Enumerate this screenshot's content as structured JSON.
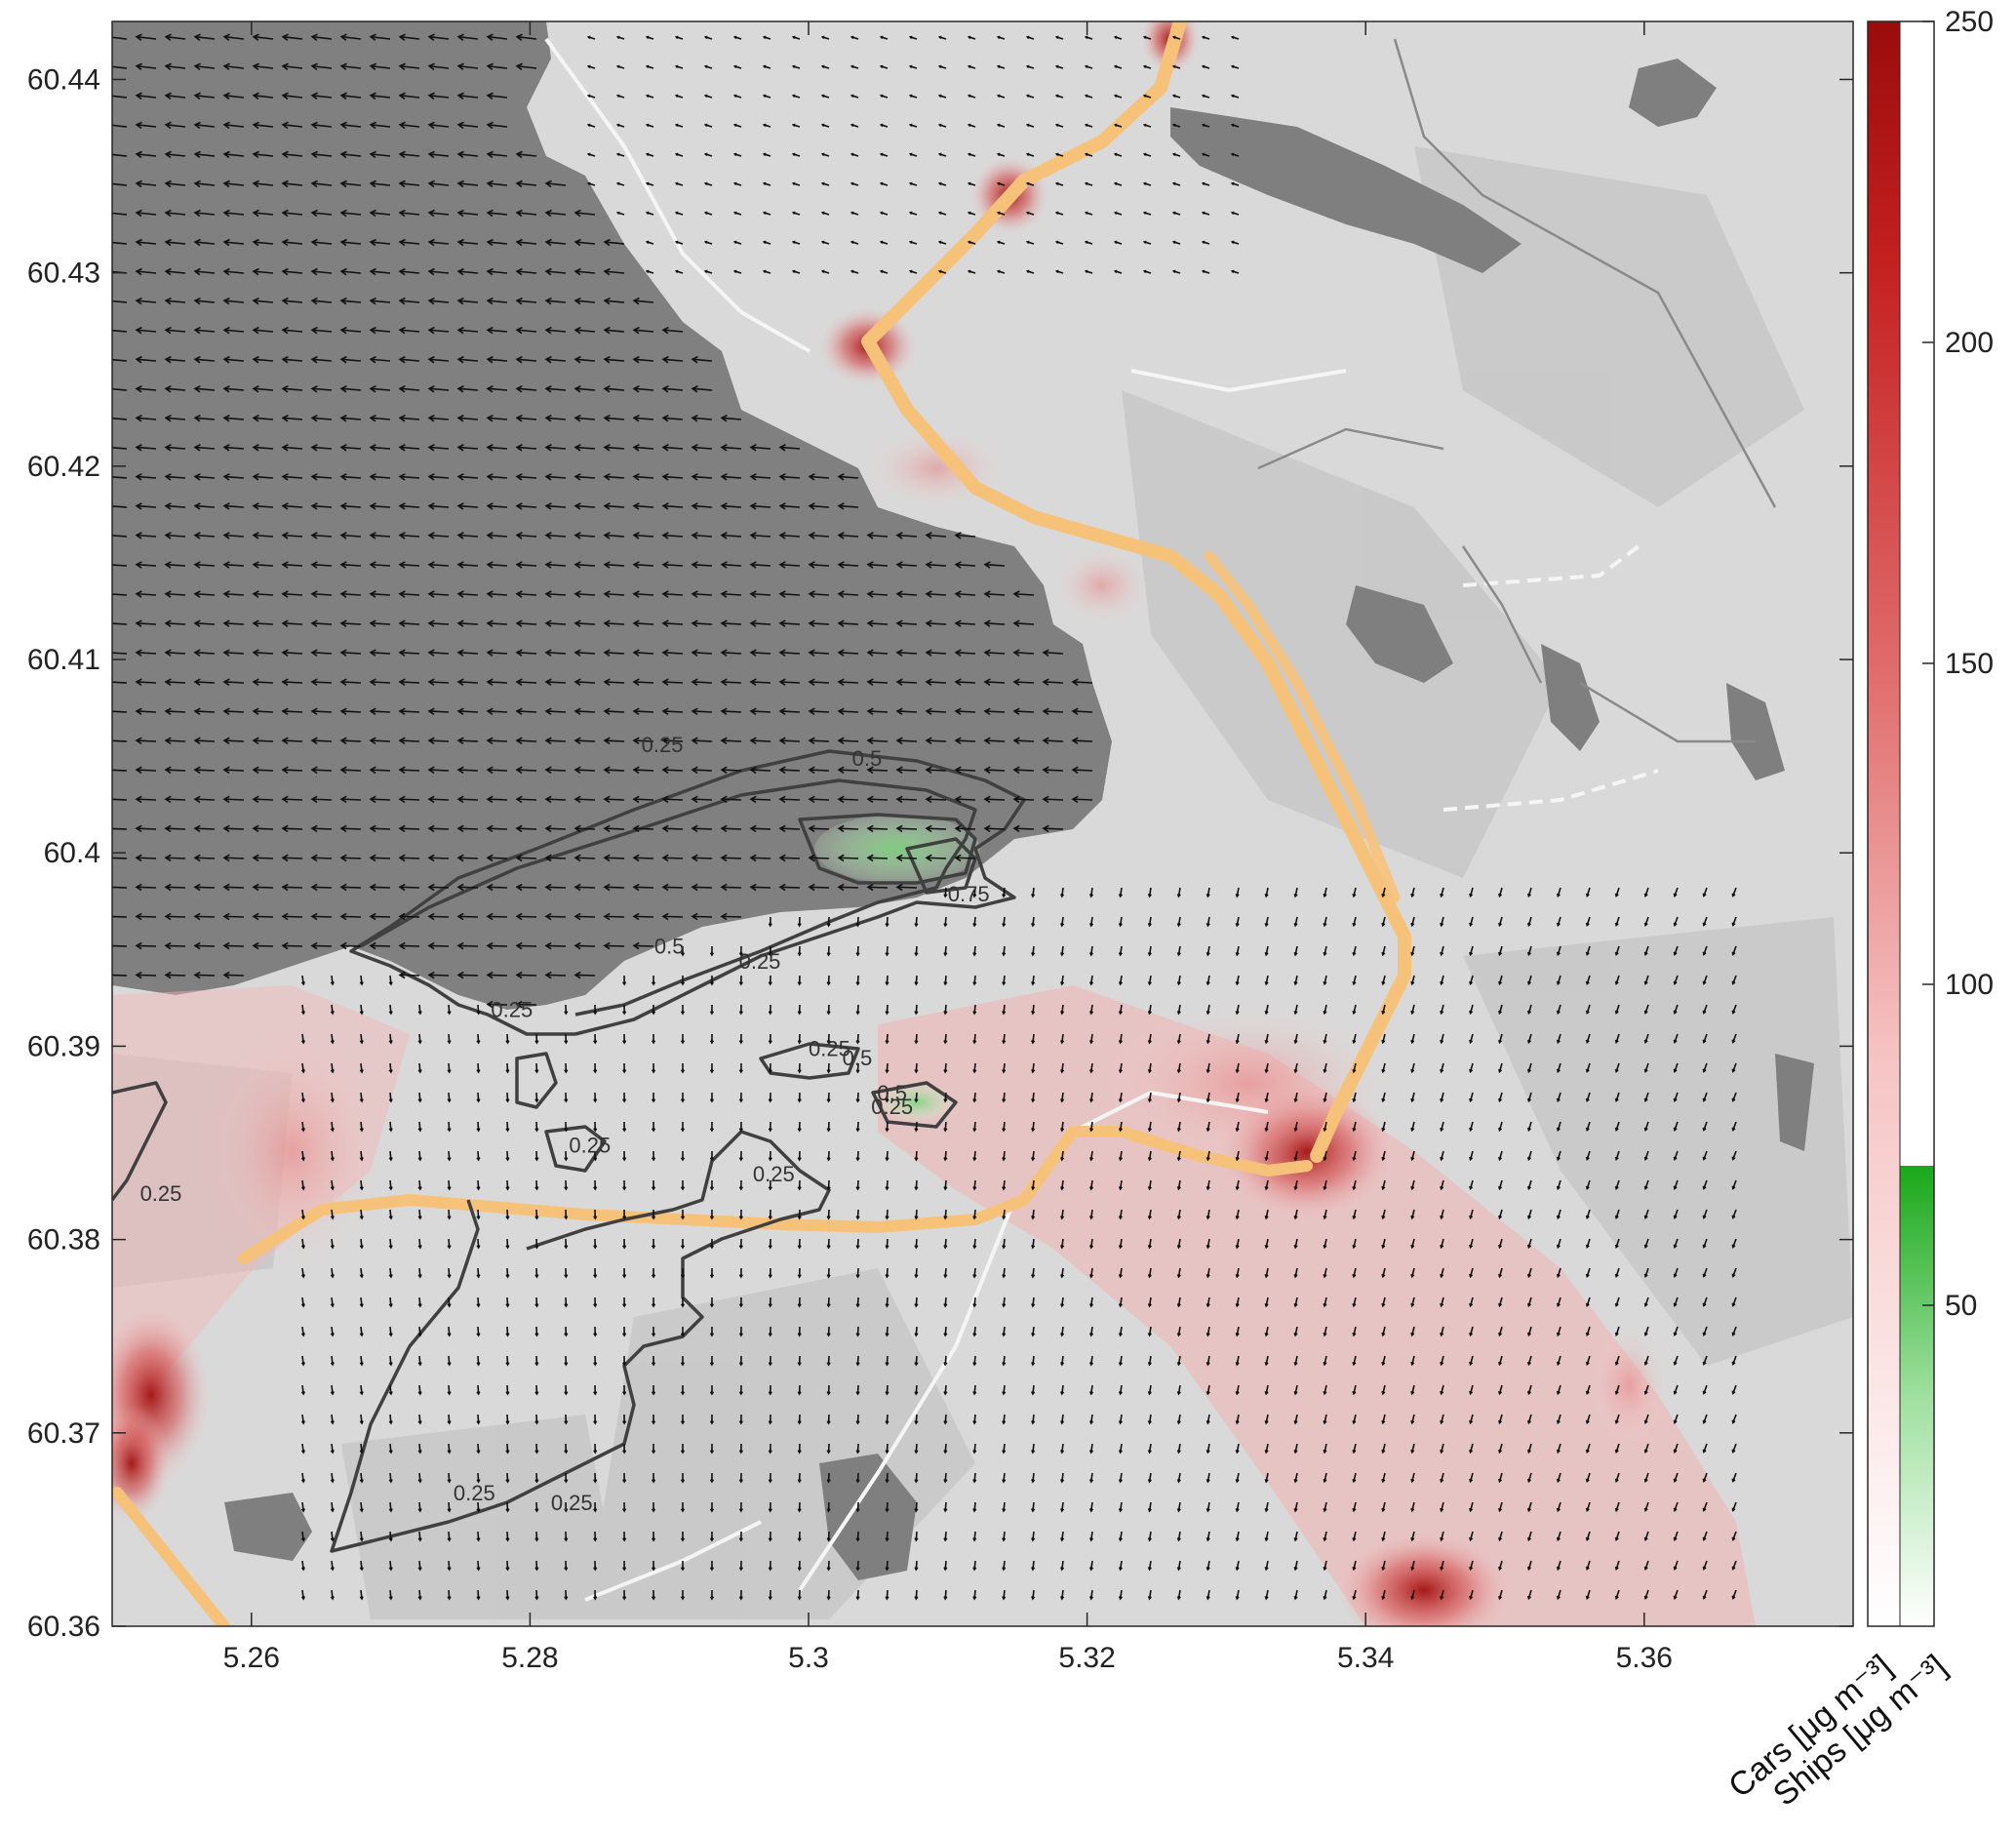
{
  "map": {
    "x_ticks": [
      "5.26",
      "5.28",
      "5.3",
      "5.32",
      "5.34",
      "5.36"
    ],
    "y_ticks": [
      "60.44",
      "60.43",
      "60.42",
      "60.41",
      "60.4",
      "60.39",
      "60.38",
      "60.37",
      "60.36"
    ],
    "x_range": [
      5.25,
      5.375
    ],
    "y_range": [
      60.36,
      60.443
    ],
    "contour_levels": [
      "0.25",
      "0.5",
      "0.75"
    ],
    "contour_labels": [
      {
        "text": "0.25",
        "lon": 5.2895,
        "lat": 60.4052
      },
      {
        "text": "0.5",
        "lon": 5.3042,
        "lat": 60.4045
      },
      {
        "text": "0.75",
        "lon": 5.3115,
        "lat": 60.3975
      },
      {
        "text": "0.5",
        "lon": 5.29,
        "lat": 60.3948
      },
      {
        "text": "0.25",
        "lon": 5.2965,
        "lat": 60.394
      },
      {
        "text": "0.25",
        "lon": 5.2787,
        "lat": 60.3915
      },
      {
        "text": "0.25",
        "lon": 5.3015,
        "lat": 60.3895
      },
      {
        "text": "0.5",
        "lon": 5.3035,
        "lat": 60.389
      },
      {
        "text": "0.5",
        "lon": 5.306,
        "lat": 60.3872
      },
      {
        "text": "0.25",
        "lon": 5.306,
        "lat": 60.3865
      },
      {
        "text": "0.25",
        "lon": 5.2843,
        "lat": 60.3845
      },
      {
        "text": "0.25",
        "lon": 5.2975,
        "lat": 60.383
      },
      {
        "text": "0.25",
        "lon": 5.2535,
        "lat": 60.382
      },
      {
        "text": "0.25",
        "lon": 5.276,
        "lat": 60.3665
      },
      {
        "text": "0.25",
        "lon": 5.283,
        "lat": 60.366
      }
    ],
    "colors": {
      "water": "#808080",
      "land": "#d9d9d9",
      "land_dark": "#bfbfbf",
      "lake": "#7f7f7f",
      "road": "#f6c27a",
      "contour": "#404040",
      "arrow": "#111111"
    }
  },
  "colorbar": {
    "ticks": [
      "250",
      "200",
      "150",
      "100",
      "50"
    ],
    "cars_label": "Cars [μg m⁻³]",
    "ships_label": "Ships [μg m⁻³]",
    "cars_range": [
      0,
      250
    ],
    "ships_range": [
      0,
      75
    ],
    "cars_colors": [
      "#ffffff",
      "#f6c5c5",
      "#e06a6a",
      "#c42020",
      "#9b0c0c"
    ],
    "ships_colors": [
      "#ffffff",
      "#9fe09f",
      "#1aa81a"
    ]
  }
}
